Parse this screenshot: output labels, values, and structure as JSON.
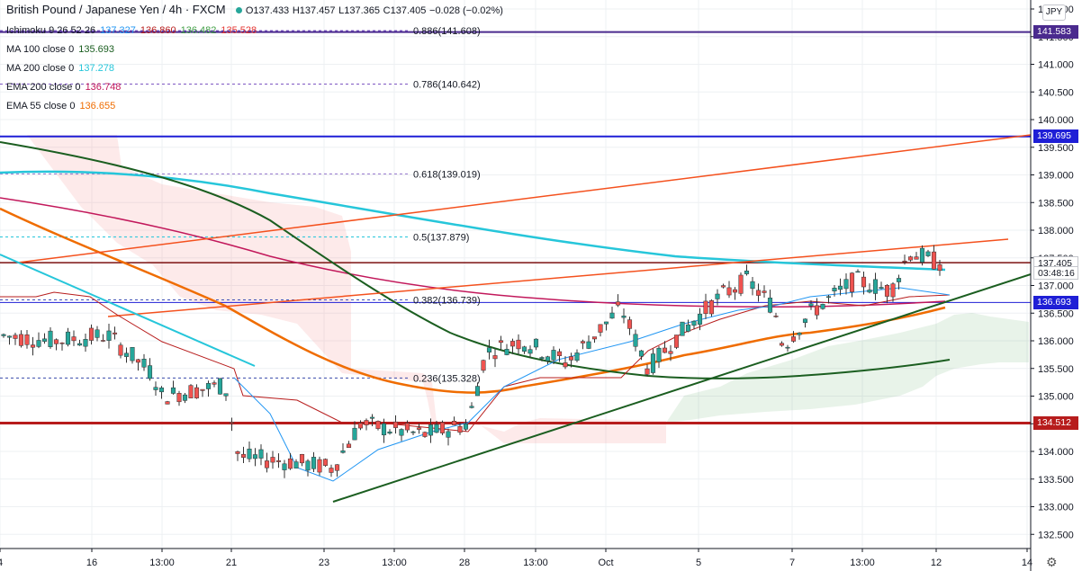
{
  "header": {
    "symbol": "British Pound / Japanese Yen",
    "interval": "4h",
    "exchange": "FXCM",
    "ohlc_o": "O137.433",
    "ohlc_h": "H137.457",
    "ohlc_l": "L137.365",
    "ohlc_c": "C137.405",
    "change": "−0.028 (−0.02%)"
  },
  "indicators": [
    {
      "label": "Ichimoku 9 26 52 26",
      "values": [
        {
          "v": "137.327",
          "color": "#2196f3"
        },
        {
          "v": "136.860",
          "color": "#b71c1c"
        },
        {
          "v": "136.482",
          "color": "#43a047"
        },
        {
          "v": "135.528",
          "color": "#e53935"
        }
      ]
    },
    {
      "label": "MA 100 close 0",
      "values": [
        {
          "v": "135.693",
          "color": "#1b5e20"
        }
      ]
    },
    {
      "label": "MA 200 close 0",
      "values": [
        {
          "v": "137.278",
          "color": "#26c6da"
        }
      ]
    },
    {
      "label": "EMA 200 close 0",
      "values": [
        {
          "v": "136.748",
          "color": "#c2185b"
        }
      ]
    },
    {
      "label": "EMA 55 close 0",
      "values": [
        {
          "v": "136.655",
          "color": "#ef6c00"
        }
      ]
    }
  ],
  "currency_button": "JPY",
  "price_axis": {
    "ticks": [
      "142.000",
      "141.500",
      "141.000",
      "140.500",
      "140.000",
      "139.500",
      "139.000",
      "138.500",
      "138.000",
      "137.500",
      "137.000",
      "136.500",
      "136.000",
      "135.500",
      "135.000",
      "134.500",
      "134.000",
      "133.500",
      "133.000",
      "132.500"
    ],
    "labels": [
      {
        "text": "141.583",
        "bg": "#4a2a8e",
        "fg": "#ffffff",
        "price": 141.583
      },
      {
        "text": "139.695",
        "bg": "#1f1fd6",
        "fg": "#ffffff",
        "price": 139.695
      },
      {
        "text": "137.412",
        "bg": "#7b1010",
        "fg": "#ffffff",
        "price": 137.412
      },
      {
        "text": "137.405",
        "bg": "#ffffff",
        "fg": "#131722",
        "price": 137.405
      },
      {
        "text": "03:48:16",
        "bg": "#ffffff",
        "fg": "#131722",
        "price": 137.22
      },
      {
        "text": "136.693",
        "bg": "#1f1fd6",
        "fg": "#ffffff",
        "price": 136.693
      },
      {
        "text": "134.512",
        "bg": "#b71c1c",
        "fg": "#ffffff",
        "price": 134.512
      }
    ]
  },
  "time_axis": {
    "ticks": [
      {
        "t": "4",
        "x": 0
      },
      {
        "t": "16",
        "x": 102
      },
      {
        "t": "13:00",
        "x": 180
      },
      {
        "t": "21",
        "x": 257
      },
      {
        "t": "23",
        "x": 360
      },
      {
        "t": "13:00",
        "x": 438
      },
      {
        "t": "28",
        "x": 516
      },
      {
        "t": "13:00",
        "x": 595
      },
      {
        "t": "Oct",
        "x": 673
      },
      {
        "t": "5",
        "x": 776
      },
      {
        "t": "7",
        "x": 880
      },
      {
        "t": "13:00",
        "x": 958
      },
      {
        "t": "12",
        "x": 1040
      },
      {
        "t": "14",
        "x": 1141
      }
    ]
  },
  "fib_levels": [
    {
      "label": "0.886(141.608)",
      "price": 141.608,
      "color": "#5e35b1"
    },
    {
      "label": "0.786(140.642)",
      "price": 140.642,
      "color": "#7e57c2"
    },
    {
      "label": "0.618(139.019)",
      "price": 139.019,
      "color": "#9575cd"
    },
    {
      "label": "0.5(137.879)",
      "price": 137.879,
      "color": "#26c6da"
    },
    {
      "label": "0.382(136.739)",
      "price": 136.739,
      "color": "#3f51b5"
    },
    {
      "label": "0.236(135.328)",
      "price": 135.328,
      "color": "#3949ab"
    }
  ],
  "colors": {
    "up": "#26a69a",
    "down": "#ef5350",
    "grid": "#eef0f3"
  }
}
